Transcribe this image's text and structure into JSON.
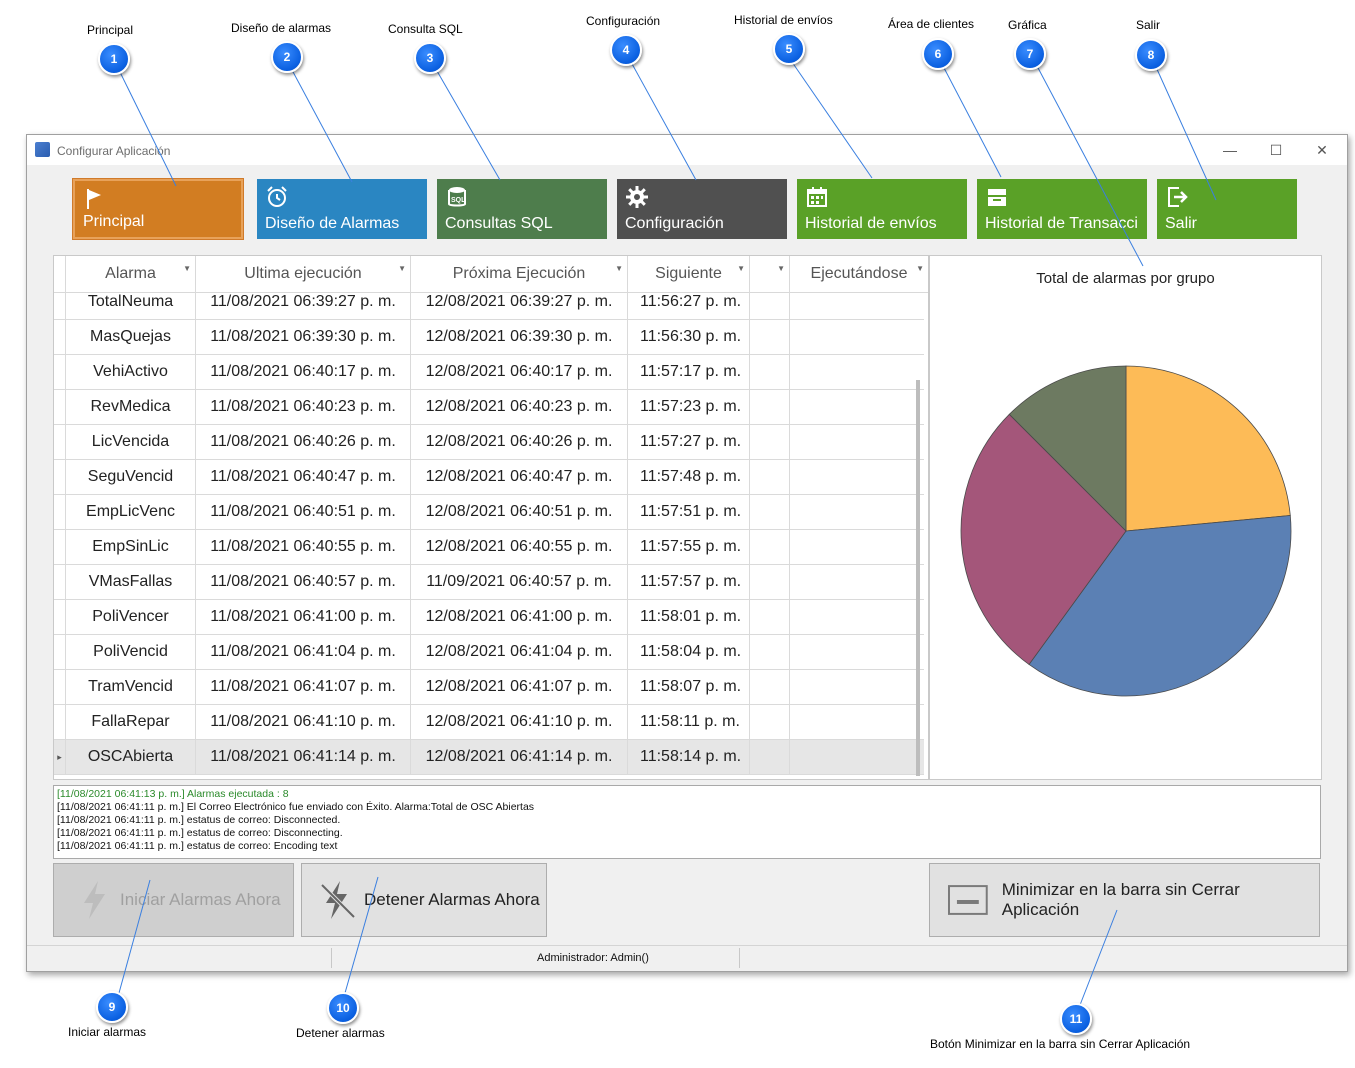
{
  "window": {
    "title": "Configurar Aplicación",
    "controls": {
      "minimize": "—",
      "maximize": "☐",
      "close": "✕"
    }
  },
  "callouts": [
    {
      "num": "1",
      "label": "Principal"
    },
    {
      "num": "2",
      "label": "Diseño de alarmas"
    },
    {
      "num": "3",
      "label": "Consulta SQL"
    },
    {
      "num": "4",
      "label": "Configuración"
    },
    {
      "num": "5",
      "label": "Historial de envíos"
    },
    {
      "num": "6",
      "label": "Área de clientes"
    },
    {
      "num": "7",
      "label": "Gráfica"
    },
    {
      "num": "8",
      "label": "Salir"
    },
    {
      "num": "9",
      "label": "Iniciar alarmas"
    },
    {
      "num": "10",
      "label": "Detener alarmas"
    },
    {
      "num": "11",
      "label": "Botón   Minimizar en la barra sin Cerrar Aplicación"
    }
  ],
  "toolbar": [
    {
      "label": "Principal",
      "icon": "flag-icon",
      "color": "#d27d22"
    },
    {
      "label": "Diseño de Alarmas",
      "icon": "alarm-clock-icon",
      "color": "#2a86c2"
    },
    {
      "label": "Consultas SQL",
      "icon": "sql-database-icon",
      "color": "#4e7d4c"
    },
    {
      "label": "Configuración",
      "icon": "gear-icon",
      "color": "#505050"
    },
    {
      "label": "Historial de envíos",
      "icon": "calendar-icon",
      "color": "#5aa127"
    },
    {
      "label": "Historial de Transacci...",
      "icon": "inbox-tray-icon",
      "color": "#5aa127"
    },
    {
      "label": "Salir",
      "icon": "exit-icon",
      "color": "#5aa127"
    }
  ],
  "grid": {
    "columns": [
      "Alarma",
      "Ultima ejecución",
      "Próxima Ejecución",
      "Siguiente",
      "",
      "Ejecutándose"
    ],
    "rows": [
      [
        "TotalNeuma",
        "11/08/2021 06:39:27 p. m.",
        "12/08/2021 06:39:27 p. m.",
        "11:56:27 p. m."
      ],
      [
        "MasQuejas",
        "11/08/2021 06:39:30 p. m.",
        "12/08/2021 06:39:30 p. m.",
        "11:56:30 p. m."
      ],
      [
        "VehiActivo",
        "11/08/2021 06:40:17 p. m.",
        "12/08/2021 06:40:17 p. m.",
        "11:57:17 p. m."
      ],
      [
        "RevMedica",
        "11/08/2021 06:40:23 p. m.",
        "12/08/2021 06:40:23 p. m.",
        "11:57:23 p. m."
      ],
      [
        "LicVencida",
        "11/08/2021 06:40:26 p. m.",
        "12/08/2021 06:40:26 p. m.",
        "11:57:27 p. m."
      ],
      [
        "SeguVencid",
        "11/08/2021 06:40:47 p. m.",
        "12/08/2021 06:40:47 p. m.",
        "11:57:48 p. m."
      ],
      [
        "EmpLicVenc",
        "11/08/2021 06:40:51 p. m.",
        "12/08/2021 06:40:51 p. m.",
        "11:57:51 p. m."
      ],
      [
        "EmpSinLic",
        "11/08/2021 06:40:55 p. m.",
        "12/08/2021 06:40:55 p. m.",
        "11:57:55 p. m."
      ],
      [
        "VMasFallas",
        "11/08/2021 06:40:57 p. m.",
        "11/09/2021 06:40:57 p. m.",
        "11:57:57 p. m."
      ],
      [
        "PoliVencer",
        "11/08/2021 06:41:00 p. m.",
        "12/08/2021 06:41:00 p. m.",
        "11:58:01 p. m."
      ],
      [
        "PoliVencid",
        "11/08/2021 06:41:04 p. m.",
        "12/08/2021 06:41:04 p. m.",
        "11:58:04 p. m."
      ],
      [
        "TramVencid",
        "11/08/2021 06:41:07 p. m.",
        "12/08/2021 06:41:07 p. m.",
        "11:58:07 p. m."
      ],
      [
        "FallaRepar",
        "11/08/2021 06:41:10 p. m.",
        "12/08/2021 06:41:10 p. m.",
        "11:58:11 p. m."
      ],
      [
        "OSCAbierta",
        "11/08/2021 06:41:14 p. m.",
        "12/08/2021 06:41:14 p. m.",
        "11:58:14 p. m."
      ]
    ],
    "selected_row_index": 13,
    "row_marker": "▸"
  },
  "chart_data": {
    "type": "pie",
    "title": "Total de alarmas por grupo",
    "values": [
      0.235,
      0.365,
      0.275,
      0.125
    ],
    "colors": [
      "#fdbb57",
      "#5b80b4",
      "#a4567a",
      "#6d7a61"
    ]
  },
  "log": [
    {
      "text": "[11/08/2021 06:41:13 p. m.] Alarmas ejecutada : 8",
      "color": "#2a8a2a"
    },
    {
      "text": "[11/08/2021 06:41:11 p. m.] El Correo Electrónico fue enviado con Éxito. Alarma:Total de OSC Abiertas",
      "color": "#111111"
    },
    {
      "text": "[11/08/2021 06:41:11 p. m.] estatus de correo: Disconnected.",
      "color": "#111111"
    },
    {
      "text": "[11/08/2021 06:41:11 p. m.] estatus de correo: Disconnecting.",
      "color": "#111111"
    },
    {
      "text": "[11/08/2021 06:41:11 p. m.] estatus de correo: Encoding text",
      "color": "#111111"
    }
  ],
  "buttons": {
    "start": "Iniciar Alarmas Ahora",
    "stop": "Detener Alarmas Ahora",
    "minimize": "Minimizar en la barra sin Cerrar Aplicación"
  },
  "status": {
    "user": "Administrador: Admin()"
  }
}
